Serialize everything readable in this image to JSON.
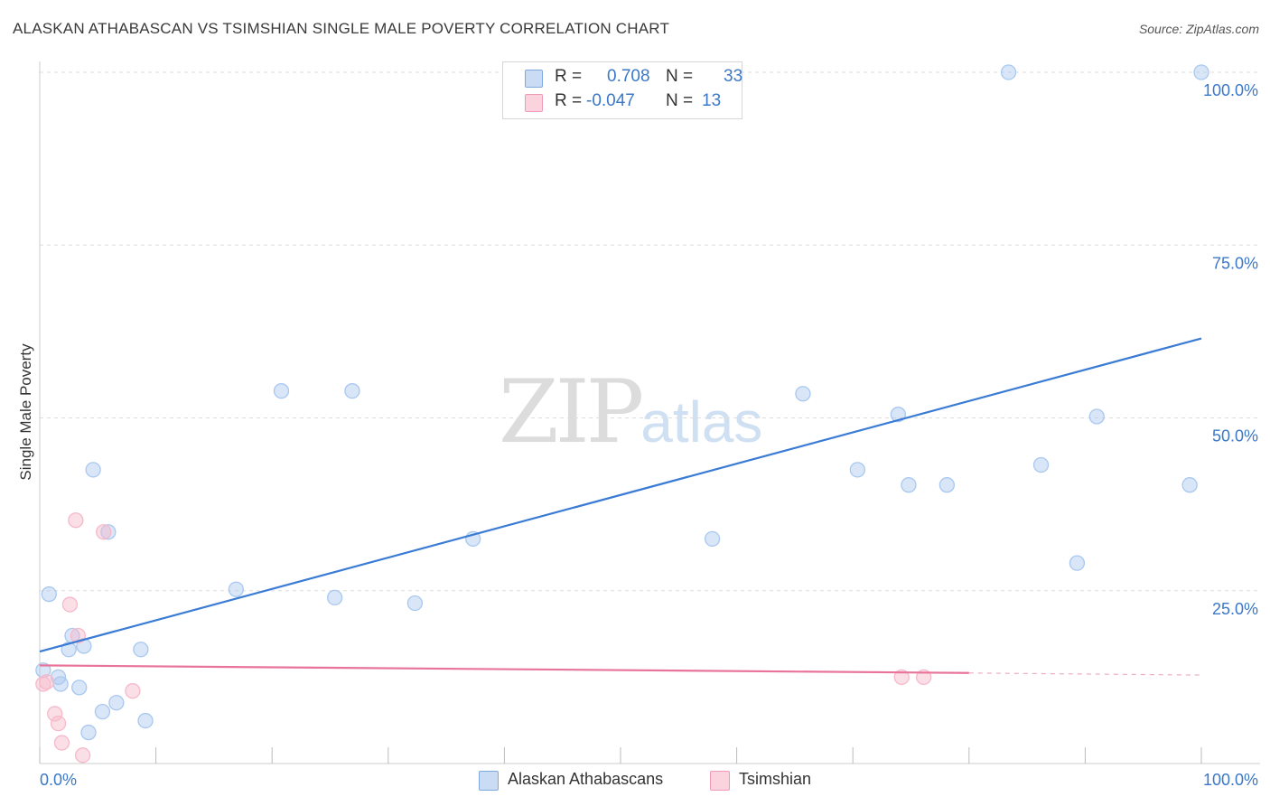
{
  "header": {
    "title": "ALASKAN ATHABASCAN VS TSIMSHIAN SINGLE MALE POVERTY CORRELATION CHART",
    "source": "Source: ZipAtlas.com"
  },
  "legend": {
    "rows": [
      {
        "r_label": "R =",
        "r_value": "0.708",
        "n_label": "N =",
        "n_value": "33",
        "color": "#a9c8ef"
      },
      {
        "r_label": "R =",
        "r_value": "-0.047",
        "n_label": "N =",
        "n_value": "13",
        "color": "#f6b8ca"
      }
    ]
  },
  "bottom_legend": {
    "items": [
      {
        "label": "Alaskan Athabascans",
        "color": "#a9c8ef"
      },
      {
        "label": "Tsimshian",
        "color": "#f6b8ca"
      }
    ]
  },
  "watermark": {
    "zip": "ZIP",
    "atlas": "atlas"
  },
  "chart_data": {
    "type": "scatter",
    "title": "ALASKAN ATHABASCAN VS TSIMSHIAN SINGLE MALE POVERTY CORRELATION CHART",
    "xlabel": "",
    "ylabel": "Single Male Poverty",
    "xlim": [
      0,
      100
    ],
    "ylim": [
      0,
      100
    ],
    "x_tick_labels": [
      "0.0%",
      "100.0%"
    ],
    "y_ticks": [
      25,
      50,
      75,
      100
    ],
    "y_tick_labels": [
      "25.0%",
      "50.0%",
      "75.0%",
      "100.0%"
    ],
    "grid": true,
    "series": [
      {
        "name": "Alaskan Athabascans",
        "color": "#3a7bd5",
        "fill": "#a9c8ef",
        "points": [
          [
            0.3,
            13.5
          ],
          [
            0.8,
            24.5
          ],
          [
            1.6,
            12.5
          ],
          [
            1.8,
            11.5
          ],
          [
            2.5,
            16.5
          ],
          [
            2.8,
            18.5
          ],
          [
            3.4,
            11.0
          ],
          [
            3.8,
            17.0
          ],
          [
            4.2,
            4.5
          ],
          [
            4.6,
            42.5
          ],
          [
            5.4,
            7.5
          ],
          [
            5.9,
            33.5
          ],
          [
            6.6,
            8.8
          ],
          [
            8.7,
            16.5
          ],
          [
            9.1,
            6.2
          ],
          [
            16.9,
            25.2
          ],
          [
            20.8,
            53.9
          ],
          [
            25.4,
            24.0
          ],
          [
            26.9,
            53.9
          ],
          [
            32.3,
            23.2
          ],
          [
            37.3,
            32.5
          ],
          [
            57.9,
            32.5
          ],
          [
            65.7,
            53.5
          ],
          [
            70.4,
            42.5
          ],
          [
            73.9,
            50.5
          ],
          [
            74.8,
            40.3
          ],
          [
            78.1,
            40.3
          ],
          [
            83.4,
            100.0
          ],
          [
            86.2,
            43.2
          ],
          [
            89.3,
            29.0
          ],
          [
            91.0,
            50.2
          ],
          [
            99.0,
            40.3
          ],
          [
            100.0,
            100.0
          ]
        ],
        "trendline": {
          "x": [
            0,
            100
          ],
          "y": [
            16.2,
            61.5
          ]
        }
      },
      {
        "name": "Tsimshian",
        "color": "#e8749a",
        "fill": "#f6b8ca",
        "points": [
          [
            0.3,
            11.5
          ],
          [
            0.6,
            11.8
          ],
          [
            1.3,
            7.2
          ],
          [
            1.6,
            5.8
          ],
          [
            1.9,
            3.0
          ],
          [
            2.6,
            23.0
          ],
          [
            3.1,
            35.2
          ],
          [
            3.3,
            18.5
          ],
          [
            3.7,
            1.2
          ],
          [
            5.5,
            33.5
          ],
          [
            8.0,
            10.5
          ],
          [
            74.2,
            12.5
          ],
          [
            76.1,
            12.5
          ]
        ],
        "trendline": {
          "x": [
            0,
            80
          ],
          "y": [
            14.2,
            13.1
          ]
        },
        "trendline_dashed": {
          "x": [
            80,
            100
          ],
          "y": [
            13.1,
            12.8
          ]
        }
      }
    ]
  }
}
